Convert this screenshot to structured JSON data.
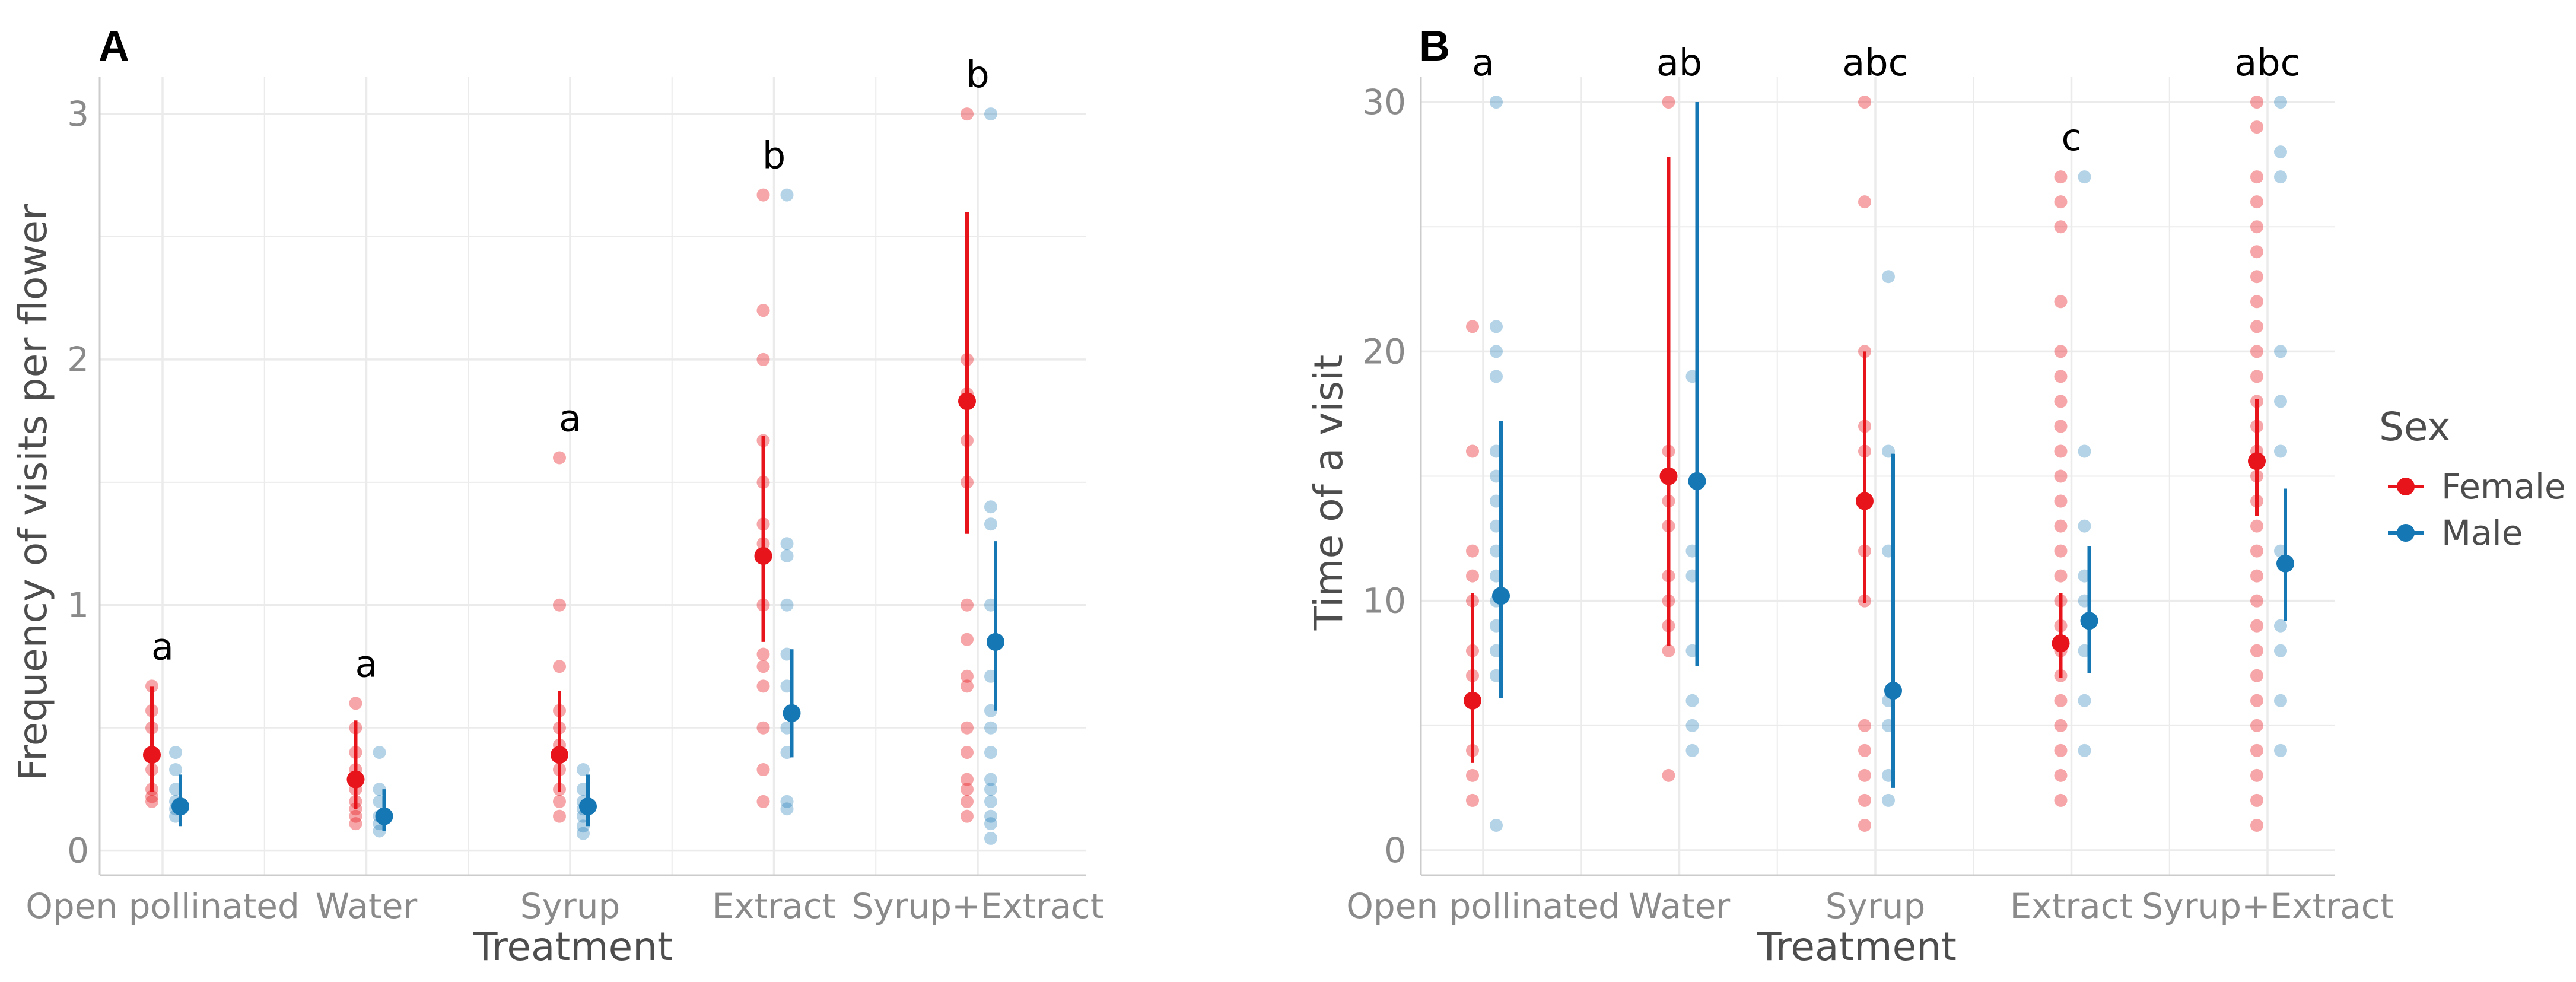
{
  "colors": {
    "female": "#e8141b",
    "male": "#1577b3",
    "grid": "#ebebeb",
    "axis": "#cccccc"
  },
  "legend": {
    "title": "Sex",
    "entries": [
      "Female",
      "Male"
    ]
  },
  "chart_data": [
    {
      "panel": "A",
      "type": "scatter",
      "xlabel": "Treatment",
      "ylabel": "Frequency of visits per flower",
      "categories": [
        "Open pollinated",
        "Water",
        "Syrup",
        "Extract",
        "Syrup+Extract"
      ],
      "ylim": [
        -0.1,
        3.15
      ],
      "yticks": [
        0,
        1,
        2,
        3
      ],
      "significance": [
        "a",
        "a",
        "a",
        "b",
        "b"
      ],
      "series": [
        {
          "name": "Female",
          "mean": [
            0.39,
            0.29,
            0.39,
            1.2,
            1.83
          ],
          "ci_low": [
            0.24,
            0.17,
            0.24,
            0.85,
            1.29
          ],
          "ci_high": [
            0.67,
            0.53,
            0.65,
            1.69,
            2.6
          ],
          "points": [
            [
              0.67,
              0.57,
              0.5,
              0.4,
              0.33,
              0.25,
              0.22,
              0.2
            ],
            [
              0.6,
              0.5,
              0.4,
              0.33,
              0.25,
              0.2,
              0.17,
              0.14,
              0.11
            ],
            [
              1.6,
              1.0,
              0.75,
              0.57,
              0.5,
              0.43,
              0.33,
              0.25,
              0.2,
              0.14
            ],
            [
              2.67,
              2.2,
              2.0,
              1.67,
              1.5,
              1.33,
              1.25,
              1.0,
              0.8,
              0.75,
              0.67,
              0.5,
              0.33,
              0.2
            ],
            [
              3.0,
              2.0,
              1.86,
              1.67,
              1.5,
              1.0,
              0.86,
              0.71,
              0.67,
              0.5,
              0.4,
              0.29,
              0.25,
              0.2,
              0.14
            ]
          ]
        },
        {
          "name": "Male",
          "mean": [
            0.18,
            0.14,
            0.18,
            0.56,
            0.85
          ],
          "ci_low": [
            0.1,
            0.08,
            0.1,
            0.38,
            0.57
          ],
          "ci_high": [
            0.31,
            0.25,
            0.31,
            0.82,
            1.26
          ],
          "points": [
            [
              0.4,
              0.33,
              0.25,
              0.2,
              0.17,
              0.14
            ],
            [
              0.4,
              0.25,
              0.2,
              0.14,
              0.11,
              0.08
            ],
            [
              0.33,
              0.25,
              0.2,
              0.17,
              0.14,
              0.1,
              0.07
            ],
            [
              2.67,
              1.25,
              1.2,
              1.0,
              0.8,
              0.67,
              0.5,
              0.4,
              0.2,
              0.17
            ],
            [
              3.0,
              1.4,
              1.33,
              1.0,
              0.71,
              0.57,
              0.5,
              0.4,
              0.29,
              0.25,
              0.2,
              0.14,
              0.11,
              0.05
            ]
          ]
        }
      ]
    },
    {
      "panel": "B",
      "type": "scatter",
      "xlabel": "Treatment",
      "ylabel": "Time of a visit",
      "categories": [
        "Open pollinated",
        "Water",
        "Syrup",
        "Extract",
        "Syrup+Extract"
      ],
      "ylim": [
        -1,
        31
      ],
      "yticks": [
        0,
        10,
        20,
        30
      ],
      "significance": [
        "a",
        "ab",
        "abc",
        "c",
        "abc"
      ],
      "series": [
        {
          "name": "Female",
          "mean": [
            6.0,
            15.0,
            14.0,
            8.3,
            15.6
          ],
          "ci_low": [
            3.5,
            8.2,
            9.9,
            6.9,
            13.4
          ],
          "ci_high": [
            10.3,
            27.8,
            20.0,
            10.3,
            18.1
          ],
          "points": [
            [
              21,
              16,
              12,
              11,
              10,
              8,
              7,
              4,
              3,
              2
            ],
            [
              30,
              16,
              15,
              14,
              13,
              11,
              10,
              9,
              8,
              3
            ],
            [
              30,
              26,
              20,
              17,
              16,
              14,
              12,
              10,
              5,
              4,
              3,
              2,
              1
            ],
            [
              27,
              26,
              25,
              22,
              20,
              19,
              18,
              17,
              16,
              15,
              14,
              13,
              12,
              11,
              10,
              9,
              8,
              7,
              6,
              5,
              4,
              3,
              2
            ],
            [
              30,
              29,
              27,
              26,
              25,
              24,
              23,
              22,
              21,
              20,
              19,
              18,
              17,
              16,
              15,
              14,
              13,
              12,
              11,
              10,
              9,
              8,
              7,
              6,
              5,
              4,
              3,
              2,
              1
            ]
          ]
        },
        {
          "name": "Male",
          "mean": [
            10.2,
            14.8,
            6.4,
            9.2,
            11.5
          ],
          "ci_low": [
            6.1,
            7.4,
            2.5,
            7.1,
            9.2
          ],
          "ci_high": [
            17.2,
            30.0,
            15.9,
            12.2,
            14.5
          ],
          "points": [
            [
              30,
              21,
              20,
              19,
              16,
              15,
              14,
              13,
              12,
              11,
              10,
              9,
              8,
              7,
              1
            ],
            [
              19,
              12,
              11,
              8,
              6,
              5,
              4
            ],
            [
              23,
              16,
              12,
              6,
              5,
              3,
              2
            ],
            [
              27,
              16,
              13,
              11,
              10,
              8,
              6,
              4
            ],
            [
              30,
              28,
              27,
              20,
              18,
              16,
              12,
              9,
              8,
              6,
              4
            ]
          ]
        }
      ]
    }
  ]
}
